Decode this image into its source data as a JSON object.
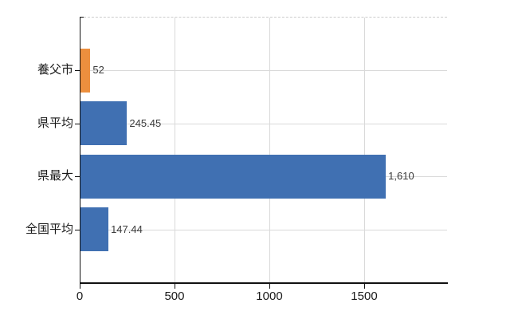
{
  "chart_data": {
    "type": "bar",
    "orientation": "horizontal",
    "title": "",
    "categories": [
      "養父市",
      "県平均",
      "県最大",
      "全国平均"
    ],
    "values": [
      52,
      245.45,
      1610,
      147.44
    ],
    "value_labels": [
      "52",
      "245.45",
      "1,610",
      "147.44"
    ],
    "bar_colors": [
      "#ec8f3e",
      "#4070b2",
      "#4070b2",
      "#4070b2"
    ],
    "xticks": [
      0,
      500,
      1000,
      1500
    ],
    "xtick_labels": [
      "0",
      "500",
      "1000",
      "1500"
    ],
    "xlim": [
      0,
      1937
    ],
    "grid": true,
    "legend": false
  },
  "colors": {
    "background": "#ffffff",
    "axis": "#111111",
    "grid": "#d9d9d9",
    "plot_top_border": "#cccccc",
    "value_label": "#3c3c3c",
    "tick_label": "#1a1a1a",
    "category_label": "#1a1a1a"
  }
}
